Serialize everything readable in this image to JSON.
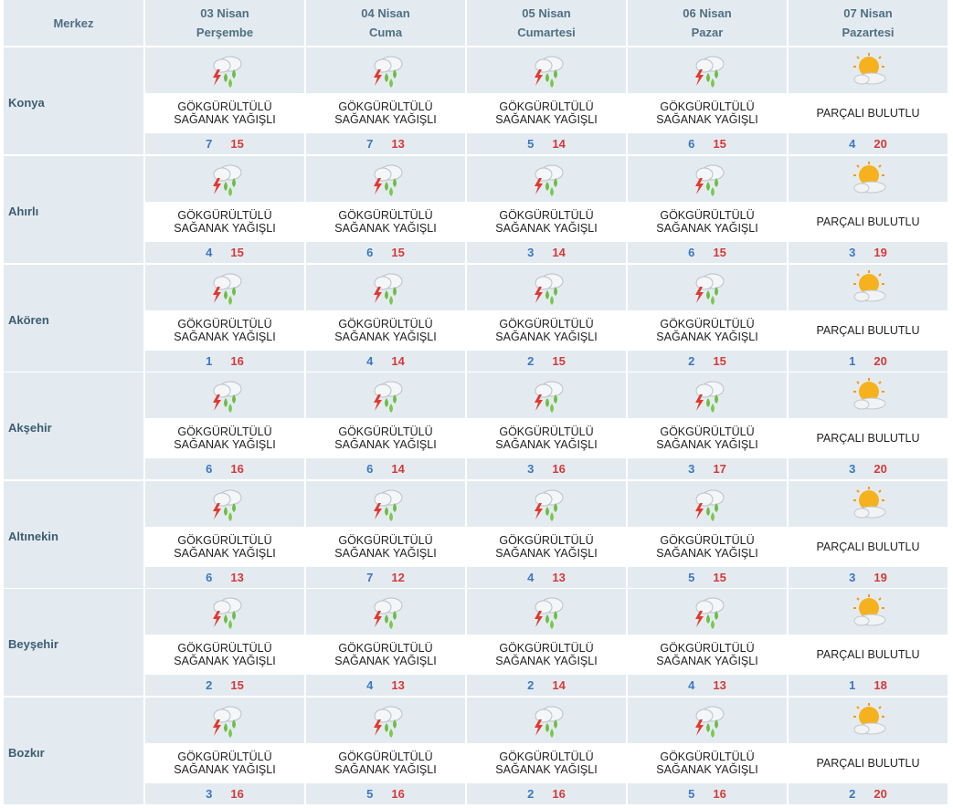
{
  "header": {
    "city_label": "Merkez",
    "days": [
      {
        "date": "03 Nisan",
        "weekday": "Perşembe"
      },
      {
        "date": "04 Nisan",
        "weekday": "Cuma"
      },
      {
        "date": "05 Nisan",
        "weekday": "Cumartesi"
      },
      {
        "date": "06 Nisan",
        "weekday": "Pazar"
      },
      {
        "date": "07 Nisan",
        "weekday": "Pazartesi"
      }
    ]
  },
  "icons": {
    "storm": "thunderstorm-shower-icon",
    "partly": "partly-cloudy-icon"
  },
  "colors": {
    "min_temp": "#3a78c3",
    "max_temp": "#d43a3a",
    "cell_bg": "#e4ebf0"
  },
  "conditions": {
    "storm_line1": "GÖKGÜRÜLTÜLÜ",
    "storm_line2": "SAĞANAK YAĞIŞLI",
    "partly": "PARÇALI BULUTLU"
  },
  "rows": [
    {
      "city": "Konya",
      "days": [
        {
          "icon": "storm",
          "min": "7",
          "max": "15"
        },
        {
          "icon": "storm",
          "min": "7",
          "max": "13"
        },
        {
          "icon": "storm",
          "min": "5",
          "max": "14"
        },
        {
          "icon": "storm",
          "min": "6",
          "max": "15"
        },
        {
          "icon": "partly",
          "min": "4",
          "max": "20"
        }
      ]
    },
    {
      "city": "Ahırlı",
      "days": [
        {
          "icon": "storm",
          "min": "4",
          "max": "15"
        },
        {
          "icon": "storm",
          "min": "6",
          "max": "15"
        },
        {
          "icon": "storm",
          "min": "3",
          "max": "14"
        },
        {
          "icon": "storm",
          "min": "6",
          "max": "15"
        },
        {
          "icon": "partly",
          "min": "3",
          "max": "19"
        }
      ]
    },
    {
      "city": "Akören",
      "days": [
        {
          "icon": "storm",
          "min": "1",
          "max": "16"
        },
        {
          "icon": "storm",
          "min": "4",
          "max": "14"
        },
        {
          "icon": "storm",
          "min": "2",
          "max": "15"
        },
        {
          "icon": "storm",
          "min": "2",
          "max": "15"
        },
        {
          "icon": "partly",
          "min": "1",
          "max": "20"
        }
      ]
    },
    {
      "city": "Akşehir",
      "days": [
        {
          "icon": "storm",
          "min": "6",
          "max": "16"
        },
        {
          "icon": "storm",
          "min": "6",
          "max": "14"
        },
        {
          "icon": "storm",
          "min": "3",
          "max": "16"
        },
        {
          "icon": "storm",
          "min": "3",
          "max": "17"
        },
        {
          "icon": "partly",
          "min": "3",
          "max": "20"
        }
      ]
    },
    {
      "city": "Altınekin",
      "days": [
        {
          "icon": "storm",
          "min": "6",
          "max": "13"
        },
        {
          "icon": "storm",
          "min": "7",
          "max": "12"
        },
        {
          "icon": "storm",
          "min": "4",
          "max": "13"
        },
        {
          "icon": "storm",
          "min": "5",
          "max": "15"
        },
        {
          "icon": "partly",
          "min": "3",
          "max": "19"
        }
      ]
    },
    {
      "city": "Beyşehir",
      "days": [
        {
          "icon": "storm",
          "min": "2",
          "max": "15"
        },
        {
          "icon": "storm",
          "min": "4",
          "max": "13"
        },
        {
          "icon": "storm",
          "min": "2",
          "max": "14"
        },
        {
          "icon": "storm",
          "min": "4",
          "max": "13"
        },
        {
          "icon": "partly",
          "min": "1",
          "max": "18"
        }
      ]
    },
    {
      "city": "Bozkır",
      "days": [
        {
          "icon": "storm",
          "min": "3",
          "max": "16"
        },
        {
          "icon": "storm",
          "min": "5",
          "max": "16"
        },
        {
          "icon": "storm",
          "min": "2",
          "max": "16"
        },
        {
          "icon": "storm",
          "min": "5",
          "max": "16"
        },
        {
          "icon": "partly",
          "min": "2",
          "max": "20"
        }
      ]
    }
  ]
}
